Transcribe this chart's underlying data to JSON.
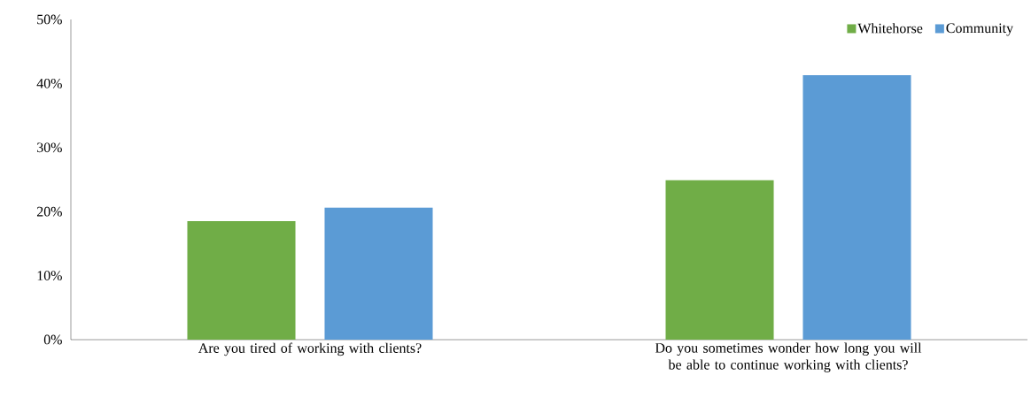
{
  "chart_data": {
    "type": "bar",
    "categories": [
      "Are you tired of working with clients?",
      "Do you sometimes wonder how long you will be able to continue working with clients?"
    ],
    "series": [
      {
        "name": "Whitehorse",
        "color": "#70ad47",
        "values": [
          18.5,
          24.9
        ]
      },
      {
        "name": "Community",
        "color": "#5b9bd5",
        "values": [
          20.6,
          41.3
        ]
      }
    ],
    "ylim": [
      0,
      50
    ],
    "yticks": [
      {
        "value": 0,
        "label": "0%"
      },
      {
        "value": 10,
        "label": "10%"
      },
      {
        "value": 20,
        "label": "20%"
      },
      {
        "value": 30,
        "label": "30%"
      },
      {
        "value": 40,
        "label": "40%"
      },
      {
        "value": 50,
        "label": "50%"
      }
    ],
    "legend": "top right"
  }
}
